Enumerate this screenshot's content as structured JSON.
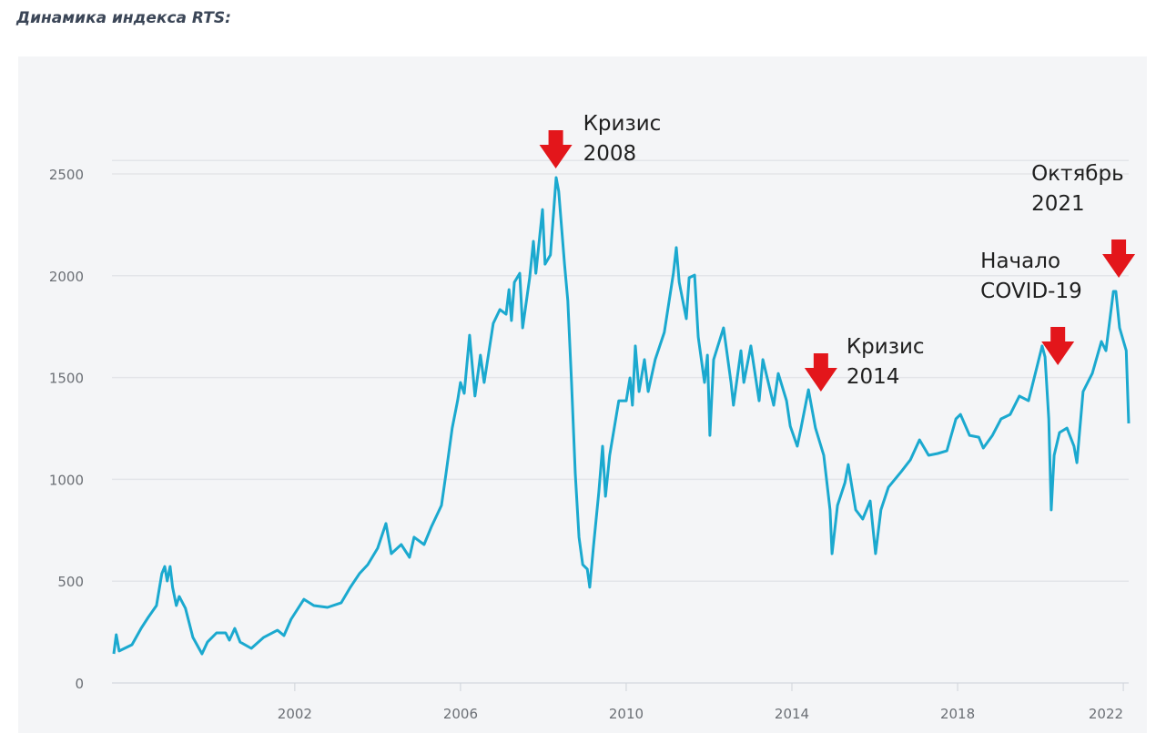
{
  "title": "Динамика индекса RTS:",
  "colors": {
    "line": "#1ba9cf",
    "background": "#f4f5f7",
    "grid": "#e3e5e9",
    "arrow": "#e3161b"
  },
  "chart_data": {
    "type": "line",
    "title": "Динамика индекса RTS:",
    "xlabel": "",
    "ylabel": "",
    "xlim": [
      1997.63,
      2022.13
    ],
    "ylim": [
      0,
      2700
    ],
    "grid": true,
    "x_ticks": [
      2002,
      2006,
      2010,
      2014,
      2018,
      2022
    ],
    "x_tick_labels": [
      "2002",
      "2006",
      "2010",
      "2014",
      "2018",
      "2022"
    ],
    "y_ticks": [
      0,
      500,
      1000,
      1500,
      2000,
      2500
    ],
    "y_tick_labels": [
      "0",
      "500",
      "1000",
      "1500",
      "2000",
      "2500"
    ],
    "series": [
      {
        "x": [
          1997.63,
          1997.69,
          1997.76,
          1998.07,
          1998.29,
          1998.46,
          1998.66,
          1998.79,
          1998.86,
          1998.92,
          1998.99,
          1999.05,
          1999.14,
          1999.21,
          1999.36,
          1999.54,
          1999.76,
          1999.89,
          2000.11,
          2000.33,
          2000.42,
          2000.55,
          2000.68,
          2000.95,
          2001.25,
          2001.58,
          2001.74,
          2001.91,
          2002.22,
          2002.46,
          2002.79,
          2003.12,
          2003.34,
          2003.56,
          2003.76,
          2004.0,
          2004.2,
          2004.33,
          2004.57,
          2004.77,
          2004.88,
          2005.12,
          2005.3,
          2005.54,
          2005.65,
          2005.8,
          2005.93,
          2006.0,
          2006.09,
          2006.22,
          2006.35,
          2006.48,
          2006.57,
          2006.79,
          2006.95,
          2007.1,
          2007.17,
          2007.23,
          2007.3,
          2007.43,
          2007.5,
          2007.67,
          2007.76,
          2007.82,
          2007.98,
          2008.04,
          2008.17,
          2008.31,
          2008.37,
          2008.51,
          2008.59,
          2008.68,
          2008.77,
          2008.86,
          2008.95,
          2009.06,
          2009.12,
          2009.21,
          2009.34,
          2009.43,
          2009.5,
          2009.6,
          2009.82,
          2010.0,
          2010.09,
          2010.15,
          2010.22,
          2010.31,
          2010.44,
          2010.53,
          2010.7,
          2010.92,
          2011.14,
          2011.21,
          2011.28,
          2011.45,
          2011.52,
          2011.65,
          2011.74,
          2011.89,
          2011.96,
          2012.02,
          2012.11,
          2012.35,
          2012.53,
          2012.59,
          2012.77,
          2012.84,
          2013.01,
          2013.21,
          2013.3,
          2013.56,
          2013.67,
          2013.87,
          2013.96,
          2014.13,
          2014.22,
          2014.4,
          2014.57,
          2014.77,
          2014.92,
          2014.97,
          2015.1,
          2015.28,
          2015.36,
          2015.54,
          2015.71,
          2015.89,
          2016.02,
          2016.15,
          2016.33,
          2016.64,
          2016.86,
          2017.08,
          2017.3,
          2017.52,
          2017.74,
          2017.96,
          2018.07,
          2018.29,
          2018.51,
          2018.62,
          2018.84,
          2019.05,
          2019.27,
          2019.49,
          2019.71,
          2019.93,
          2020.04,
          2020.11,
          2020.2,
          2020.26,
          2020.33,
          2020.46,
          2020.64,
          2020.81,
          2020.88,
          2021.03,
          2021.25,
          2021.47,
          2021.58,
          2021.76,
          2021.82,
          2021.91,
          2022.07,
          2022.13
        ],
        "y": [
          143,
          237,
          157,
          188,
          268,
          322,
          380,
          537,
          572,
          501,
          572,
          470,
          380,
          425,
          367,
          224,
          143,
          201,
          246,
          246,
          210,
          268,
          201,
          170,
          224,
          259,
          233,
          313,
          411,
          380,
          371,
          394,
          470,
          537,
          581,
          662,
          783,
          635,
          680,
          617,
          716,
          680,
          769,
          872,
          1029,
          1252,
          1386,
          1476,
          1422,
          1708,
          1409,
          1610,
          1476,
          1766,
          1834,
          1811,
          1932,
          1780,
          1968,
          2012,
          1744,
          1990,
          2169,
          2012,
          2325,
          2057,
          2102,
          2482,
          2415,
          2057,
          1878,
          1476,
          1029,
          716,
          581,
          559,
          470,
          671,
          939,
          1163,
          917,
          1118,
          1386,
          1386,
          1498,
          1364,
          1655,
          1431,
          1588,
          1431,
          1588,
          1722,
          2012,
          2138,
          1968,
          1789,
          1990,
          2003,
          1699,
          1476,
          1610,
          1216,
          1588,
          1744,
          1476,
          1364,
          1632,
          1476,
          1655,
          1386,
          1588,
          1364,
          1520,
          1386,
          1261,
          1163,
          1252,
          1440,
          1252,
          1118,
          850,
          635,
          872,
          984,
          1073,
          850,
          805,
          894,
          635,
          850,
          961,
          1038,
          1096,
          1194,
          1118,
          1127,
          1140,
          1297,
          1319,
          1216,
          1207,
          1154,
          1216,
          1297,
          1319,
          1409,
          1386,
          1565,
          1655,
          1601,
          1297,
          850,
          1118,
          1230,
          1252,
          1163,
          1082,
          1431,
          1520,
          1677,
          1632,
          1923,
          1923,
          1744,
          1632,
          1275
        ]
      }
    ],
    "annotations": [
      {
        "lines": [
          "Кризис",
          "2008"
        ],
        "x": 2008.3,
        "y": 2518
      },
      {
        "lines": [
          "Кризис",
          "2014"
        ],
        "x": 2014.7,
        "y": 1422
      },
      {
        "lines": [
          "Начало",
          "COVID-19"
        ],
        "x": 2020.42,
        "y": 1552
      },
      {
        "lines": [
          "Октябрь",
          "2021"
        ],
        "x": 2021.89,
        "y": 1981
      }
    ]
  }
}
